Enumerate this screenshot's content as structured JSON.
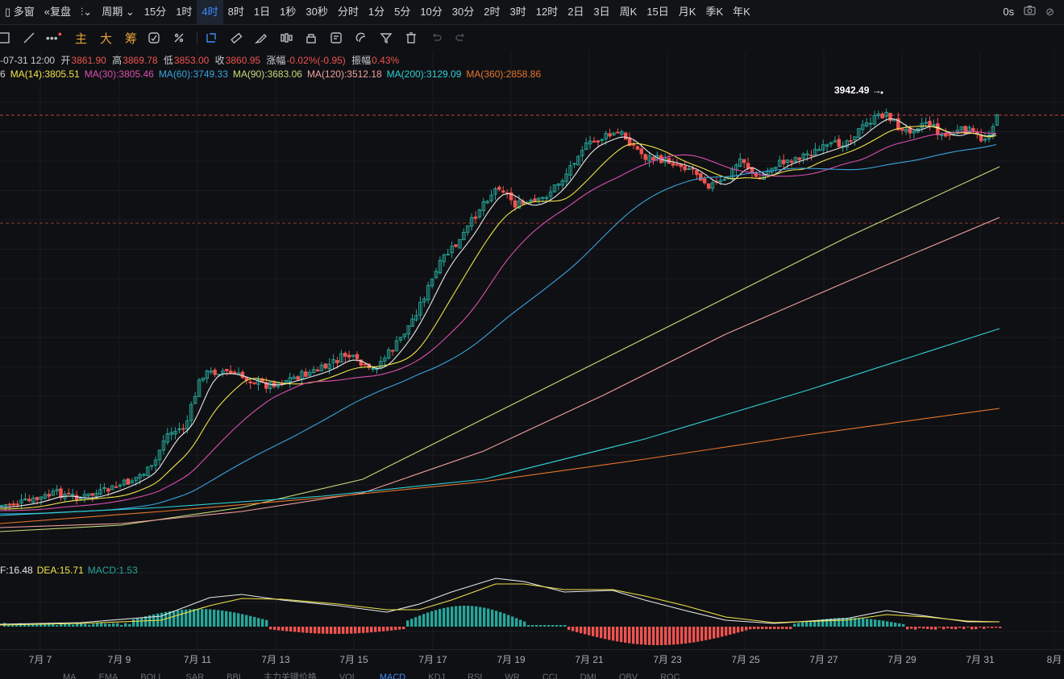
{
  "toolbar": {
    "multi_window": "多窗",
    "restore": "复盘",
    "period": "周期",
    "intervals": [
      "15分",
      "1时",
      "4时",
      "8时",
      "1日",
      "1秒",
      "30秒",
      "分时",
      "1分",
      "5分",
      "10分",
      "30分",
      "2时",
      "3时",
      "12时",
      "2日",
      "3日",
      "周K",
      "15日",
      "月K",
      "季K",
      "年K"
    ],
    "active_interval": "4时",
    "latency": "0s"
  },
  "drawbar": {
    "main_label": "主",
    "big_label": "大",
    "chip_label": "筹"
  },
  "ohlc": {
    "date": "-07-31 12:00",
    "open_label": "开",
    "open": "3861.90",
    "high_label": "高",
    "high": "3869.78",
    "low_label": "低",
    "low": "3853.00",
    "close_label": "收",
    "close": "3860.95",
    "change_label": "涨幅",
    "change": "-0.02%(-0.95)",
    "amp_label": "振幅",
    "amp": "0.43%"
  },
  "ma_legend": [
    {
      "text": "6",
      "color": "#d0d3d8"
    },
    {
      "text": "MA(14):3805.51",
      "color": "#f0e34a"
    },
    {
      "text": "MA(30):3805.46",
      "color": "#d94fb0"
    },
    {
      "text": "MA(60):3749.33",
      "color": "#3aa3e0"
    },
    {
      "text": "MA(90):3683.06",
      "color": "#c6dc7c"
    },
    {
      "text": "MA(120):3512.18",
      "color": "#f2a0a0"
    },
    {
      "text": "MA(200):3129.09",
      "color": "#2fd0d8"
    },
    {
      "text": "MA(360):2858.86",
      "color": "#e8762e"
    }
  ],
  "peak_label": "3942.49 →",
  "macd_legend": [
    {
      "text": "F:16.48",
      "color": "#e8e8e8"
    },
    {
      "text": "DEA:15.71",
      "color": "#f0e34a"
    },
    {
      "text": "MACD:1.53",
      "color": "#26a69a"
    }
  ],
  "x_labels": [
    "7月 7",
    "7月 9",
    "7月 11",
    "7月 13",
    "7月 15",
    "7月 17",
    "7月 19",
    "7月 21",
    "7月 23",
    "7月 25",
    "7月 27",
    "7月 29",
    "7月 31",
    "8月"
  ],
  "bottom_tabs": [
    "MA",
    "EMA",
    "BOLL",
    "SAR",
    "BBI",
    "主力关键价格",
    "VOL",
    "MACD",
    "KDJ",
    "RSI",
    "WR",
    "CCI",
    "DMI",
    "OBV",
    "ROC"
  ],
  "colors": {
    "up": "#26a69a",
    "down": "#ef5350",
    "accent": "#3d8bff",
    "gold": "#e6a23c"
  }
}
